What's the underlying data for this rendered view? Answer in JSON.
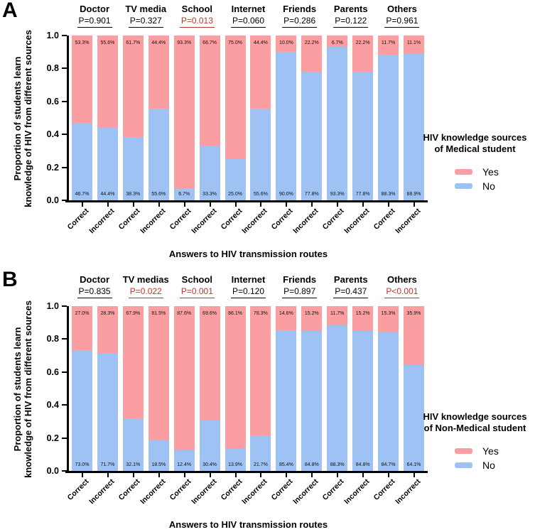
{
  "colors": {
    "yes": "#FB9EA1",
    "no": "#9EC2F4",
    "significant_p": "#B5382E",
    "normal_p": "#000000",
    "axis": "#000000"
  },
  "chart_data": [
    {
      "type": "bar",
      "stacked": true,
      "panel_letter": "A",
      "ylabel_lines": [
        "Proportion of students learn",
        "knowledge of HIV from different sources"
      ],
      "xlabel": "Answers to HIV transmission routes",
      "ylim": [
        0,
        1.0
      ],
      "yticks": [
        1.0,
        0.8,
        0.6,
        0.4,
        0.2,
        0.0
      ],
      "grid": false,
      "legend": {
        "position": "right",
        "title_lines": [
          "HIV knowledge sources",
          "of Medical student"
        ],
        "items": [
          {
            "label": "Yes",
            "series": "yes"
          },
          {
            "label": "No",
            "series": "no"
          }
        ]
      },
      "groups": [
        {
          "name": "Doctor",
          "p": "P=0.901",
          "significant": false,
          "bars": [
            {
              "x": "Correct",
              "yes": 53.3,
              "no": 46.7
            },
            {
              "x": "Incorrect",
              "yes": 55.6,
              "no": 44.4
            }
          ]
        },
        {
          "name": "TV media",
          "p": "P=0.327",
          "significant": false,
          "bars": [
            {
              "x": "Correct",
              "yes": 61.7,
              "no": 38.3
            },
            {
              "x": "Incorrect",
              "yes": 44.4,
              "no": 55.6
            }
          ]
        },
        {
          "name": "School",
          "p": "P=0.013",
          "significant": true,
          "bars": [
            {
              "x": "Correct",
              "yes": 93.3,
              "no": 6.7
            },
            {
              "x": "Incorrect",
              "yes": 66.7,
              "no": 33.3
            }
          ]
        },
        {
          "name": "Internet",
          "p": "P=0.060",
          "significant": false,
          "bars": [
            {
              "x": "Correct",
              "yes": 75.0,
              "no": 25.0
            },
            {
              "x": "Incorrect",
              "yes": 44.4,
              "no": 55.6
            }
          ]
        },
        {
          "name": "Friends",
          "p": "P=0.286",
          "significant": false,
          "bars": [
            {
              "x": "Correct",
              "yes": 10.0,
              "no": 90.0
            },
            {
              "x": "Incorrect",
              "yes": 22.2,
              "no": 77.8
            }
          ]
        },
        {
          "name": "Parents",
          "p": "P=0.122",
          "significant": false,
          "bars": [
            {
              "x": "Correct",
              "yes": 6.7,
              "no": 93.3
            },
            {
              "x": "Incorrect",
              "yes": 22.2,
              "no": 77.8
            }
          ]
        },
        {
          "name": "Others",
          "p": "P=0.961",
          "significant": false,
          "bars": [
            {
              "x": "Correct",
              "yes": 11.7,
              "no": 88.3
            },
            {
              "x": "Incorrect",
              "yes": 11.1,
              "no": 88.9
            }
          ]
        }
      ]
    },
    {
      "type": "bar",
      "stacked": true,
      "panel_letter": "B",
      "ylabel_lines": [
        "Proportion of students learn",
        "knowledge of HIV from different sources"
      ],
      "xlabel": "Answers to HIV transmission routes",
      "ylim": [
        0,
        1.0
      ],
      "yticks": [
        1.0,
        0.8,
        0.6,
        0.4,
        0.2,
        0.0
      ],
      "grid": false,
      "legend": {
        "position": "right",
        "title_lines": [
          "HIV knowledge sources",
          "of Non-Medical student"
        ],
        "items": [
          {
            "label": "Yes",
            "series": "yes"
          },
          {
            "label": "No",
            "series": "no"
          }
        ]
      },
      "groups": [
        {
          "name": "Doctor",
          "p": "P=0.835",
          "significant": false,
          "bars": [
            {
              "x": "Correct",
              "yes": 27.0,
              "no": 73.0
            },
            {
              "x": "Incorrect",
              "yes": 28.3,
              "no": 71.7
            }
          ]
        },
        {
          "name": "TV medias",
          "p": "P=0.022",
          "significant": true,
          "bars": [
            {
              "x": "Correct",
              "yes": 67.9,
              "no": 32.1
            },
            {
              "x": "Incorrect",
              "yes": 81.5,
              "no": 18.5
            }
          ]
        },
        {
          "name": "School",
          "p": "P=0.001",
          "significant": true,
          "bars": [
            {
              "x": "Correct",
              "yes": 87.6,
              "no": 12.4
            },
            {
              "x": "Incorrect",
              "yes": 69.6,
              "no": 30.4
            }
          ]
        },
        {
          "name": "Internet",
          "p": "P=0.120",
          "significant": false,
          "bars": [
            {
              "x": "Correct",
              "yes": 86.1,
              "no": 13.9
            },
            {
              "x": "Incorrect",
              "yes": 78.3,
              "no": 21.7
            }
          ]
        },
        {
          "name": "Friends",
          "p": "P=0.897",
          "significant": false,
          "bars": [
            {
              "x": "Correct",
              "yes": 14.6,
              "no": 85.4
            },
            {
              "x": "Incorrect",
              "yes": 15.2,
              "no": 84.8
            }
          ]
        },
        {
          "name": "Parents",
          "p": "P=0.437",
          "significant": false,
          "bars": [
            {
              "x": "Correct",
              "yes": 11.7,
              "no": 88.3
            },
            {
              "x": "Incorrect",
              "yes": 15.2,
              "no": 84.8
            }
          ]
        },
        {
          "name": "Others",
          "p": "P<0.001",
          "significant": true,
          "bars": [
            {
              "x": "Correct",
              "yes": 15.3,
              "no": 84.7
            },
            {
              "x": "Incorrect",
              "yes": 35.9,
              "no": 64.1
            }
          ]
        }
      ]
    }
  ]
}
